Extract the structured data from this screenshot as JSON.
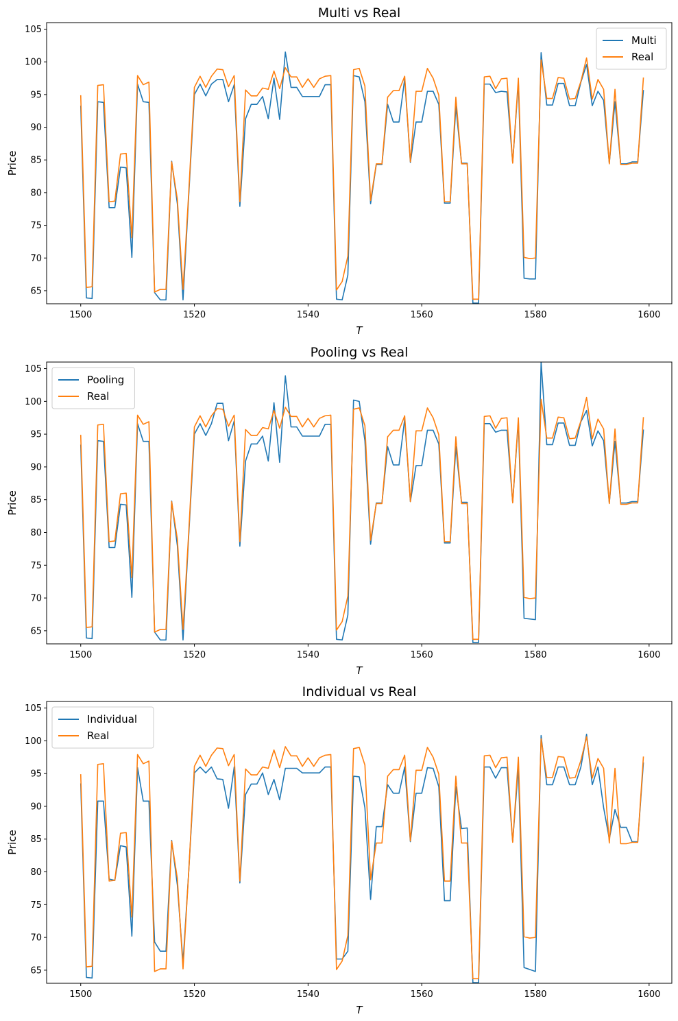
{
  "colors": {
    "model": "#1f77b4",
    "real": "#ff7f0e"
  },
  "chart_data": [
    {
      "type": "line",
      "title": "Multi vs Real",
      "xlabel": "T",
      "ylabel": "Price",
      "xlim": [
        1494,
        1604
      ],
      "ylim": [
        63,
        106
      ],
      "xticks": [
        1500,
        1520,
        1540,
        1560,
        1580,
        1600
      ],
      "yticks": [
        65,
        70,
        75,
        80,
        85,
        90,
        95,
        100,
        105
      ],
      "legend_position": "upper right",
      "x_start": 1500,
      "series": [
        {
          "name": "Multi",
          "color": "#1f77b4",
          "values": [
            93.3,
            63.9,
            63.8,
            93.9,
            93.8,
            77.7,
            77.7,
            83.9,
            83.8,
            70.1,
            96.6,
            93.9,
            93.8,
            64.7,
            63.6,
            63.6,
            84.8,
            78.3,
            63.6,
            79.5,
            95.0,
            96.6,
            94.8,
            96.6,
            97.3,
            97.3,
            93.9,
            96.5,
            77.9,
            91.3,
            93.5,
            93.5,
            94.7,
            91.3,
            97.5,
            91.2,
            101.5,
            96.1,
            96.1,
            94.7,
            94.7,
            94.7,
            94.7,
            96.5,
            96.5,
            63.7,
            63.6,
            67.4,
            97.9,
            97.7,
            93.9,
            78.3,
            84.3,
            84.3,
            93.5,
            90.8,
            90.8,
            97.4,
            84.6,
            90.8,
            90.8,
            95.5,
            95.5,
            93.5,
            78.4,
            78.4,
            93.2,
            84.5,
            84.5,
            63.1,
            63.1,
            96.6,
            96.6,
            95.3,
            95.5,
            95.4,
            84.6,
            96.9,
            66.9,
            66.8,
            66.8,
            101.4,
            93.4,
            93.4,
            96.7,
            96.7,
            93.3,
            93.3,
            96.9,
            99.6,
            93.3,
            95.5,
            94.1,
            84.5,
            93.9,
            84.4,
            84.4,
            84.7,
            84.7,
            95.7
          ]
        },
        {
          "name": "Real",
          "color": "#ff7f0e",
          "values": [
            94.9,
            65.5,
            65.6,
            96.4,
            96.5,
            78.6,
            78.7,
            85.9,
            86.0,
            73.1,
            97.9,
            96.5,
            96.9,
            64.8,
            65.2,
            65.2,
            84.7,
            79.0,
            65.2,
            80.0,
            96.1,
            97.8,
            96.1,
            97.8,
            98.9,
            98.8,
            96.2,
            97.9,
            78.6,
            95.7,
            94.8,
            94.8,
            96.0,
            95.8,
            98.6,
            95.9,
            99.1,
            97.7,
            97.7,
            96.1,
            97.4,
            96.1,
            97.4,
            97.8,
            97.9,
            65.1,
            66.4,
            70.3,
            98.8,
            99.0,
            96.3,
            78.8,
            84.4,
            84.4,
            94.6,
            95.6,
            95.6,
            97.8,
            84.7,
            95.5,
            95.5,
            99.0,
            97.5,
            94.9,
            78.6,
            78.6,
            94.6,
            84.4,
            84.4,
            63.7,
            63.7,
            97.7,
            97.8,
            95.9,
            97.4,
            97.5,
            84.5,
            97.5,
            70.1,
            69.9,
            70.0,
            100.3,
            94.4,
            94.4,
            97.6,
            97.5,
            94.3,
            94.4,
            97.0,
            100.6,
            94.3,
            97.3,
            95.8,
            84.4,
            95.8,
            84.3,
            84.3,
            84.5,
            84.5,
            97.6
          ]
        }
      ]
    },
    {
      "type": "line",
      "title": "Pooling vs Real",
      "xlabel": "T",
      "ylabel": "Price",
      "xlim": [
        1494,
        1604
      ],
      "ylim": [
        63,
        106
      ],
      "xticks": [
        1500,
        1520,
        1540,
        1560,
        1580,
        1600
      ],
      "yticks": [
        65,
        70,
        75,
        80,
        85,
        90,
        95,
        100,
        105
      ],
      "legend_position": "upper left",
      "x_start": 1500,
      "series": [
        {
          "name": "Pooling",
          "color": "#1f77b4",
          "values": [
            93.4,
            63.9,
            63.8,
            94.0,
            93.9,
            77.7,
            77.7,
            84.3,
            84.2,
            70.1,
            96.6,
            93.9,
            93.9,
            64.8,
            63.6,
            63.6,
            84.8,
            78.0,
            63.6,
            79.5,
            95.0,
            96.6,
            94.8,
            96.6,
            99.7,
            99.7,
            94.0,
            97.0,
            77.9,
            90.9,
            93.5,
            93.5,
            94.7,
            90.9,
            99.8,
            90.7,
            103.9,
            96.1,
            96.1,
            94.7,
            94.7,
            94.7,
            94.7,
            96.5,
            96.5,
            63.7,
            63.6,
            67.4,
            100.2,
            100.0,
            94.0,
            78.2,
            84.5,
            84.5,
            93.1,
            90.3,
            90.3,
            97.3,
            84.7,
            90.2,
            90.2,
            95.6,
            95.6,
            93.5,
            78.4,
            78.4,
            93.1,
            84.6,
            84.6,
            63.2,
            63.2,
            96.6,
            96.6,
            95.3,
            95.6,
            95.6,
            84.6,
            97.0,
            66.9,
            66.8,
            66.7,
            106.0,
            93.4,
            93.4,
            96.7,
            96.7,
            93.3,
            93.3,
            96.9,
            98.6,
            93.2,
            95.5,
            94.0,
            84.5,
            93.9,
            84.5,
            84.5,
            84.7,
            84.7,
            95.7
          ]
        },
        {
          "name": "Real",
          "color": "#ff7f0e",
          "values": [
            94.9,
            65.5,
            65.6,
            96.4,
            96.5,
            78.6,
            78.7,
            85.9,
            86.0,
            73.1,
            97.9,
            96.5,
            96.9,
            64.8,
            65.2,
            65.2,
            84.7,
            79.0,
            65.2,
            80.0,
            96.1,
            97.8,
            96.1,
            97.8,
            98.9,
            98.8,
            96.2,
            97.9,
            78.6,
            95.7,
            94.8,
            94.8,
            96.0,
            95.8,
            98.6,
            95.9,
            99.1,
            97.7,
            97.7,
            96.1,
            97.4,
            96.1,
            97.4,
            97.8,
            97.9,
            65.1,
            66.4,
            70.3,
            98.8,
            99.0,
            96.3,
            78.8,
            84.4,
            84.4,
            94.6,
            95.6,
            95.6,
            97.8,
            84.7,
            95.5,
            95.5,
            99.0,
            97.5,
            94.9,
            78.6,
            78.6,
            94.6,
            84.4,
            84.4,
            63.7,
            63.7,
            97.7,
            97.8,
            95.9,
            97.4,
            97.5,
            84.5,
            97.5,
            70.1,
            69.9,
            70.0,
            100.3,
            94.4,
            94.4,
            97.6,
            97.5,
            94.3,
            94.4,
            97.0,
            100.6,
            94.3,
            97.3,
            95.8,
            84.4,
            95.8,
            84.3,
            84.3,
            84.5,
            84.5,
            97.6
          ]
        }
      ]
    },
    {
      "type": "line",
      "title": "Individual vs Real",
      "xlabel": "T",
      "ylabel": "Price",
      "xlim": [
        1494,
        1604
      ],
      "ylim": [
        63,
        106
      ],
      "xticks": [
        1500,
        1520,
        1540,
        1560,
        1580,
        1600
      ],
      "yticks": [
        65,
        70,
        75,
        80,
        85,
        90,
        95,
        100,
        105
      ],
      "legend_position": "upper left",
      "x_start": 1500,
      "series": [
        {
          "name": "Individual",
          "color": "#1f77b4",
          "values": [
            93.5,
            63.9,
            63.8,
            90.8,
            90.8,
            78.9,
            78.7,
            84.0,
            83.8,
            70.2,
            95.9,
            90.8,
            90.8,
            69.3,
            67.9,
            67.9,
            84.8,
            78.0,
            66.2,
            80.0,
            95.1,
            96.0,
            95.1,
            96.0,
            94.2,
            94.1,
            89.7,
            96.0,
            78.3,
            91.8,
            93.4,
            93.4,
            95.1,
            91.8,
            94.1,
            91.0,
            95.8,
            95.8,
            95.8,
            95.1,
            95.1,
            95.1,
            95.1,
            96.0,
            96.0,
            66.7,
            66.7,
            67.9,
            94.6,
            94.5,
            89.8,
            75.8,
            86.9,
            86.9,
            93.3,
            92.0,
            92.0,
            96.0,
            84.6,
            92.0,
            92.0,
            95.9,
            95.8,
            93.0,
            75.6,
            75.6,
            93.0,
            86.6,
            86.7,
            63.1,
            63.1,
            96.0,
            96.0,
            94.3,
            95.9,
            95.9,
            84.6,
            96.0,
            65.4,
            65.1,
            64.8,
            100.8,
            93.3,
            93.3,
            96.0,
            96.0,
            93.3,
            93.3,
            96.0,
            101.0,
            93.3,
            96.0,
            89.8,
            85.0,
            89.5,
            86.8,
            86.8,
            84.6,
            84.6,
            96.7
          ]
        },
        {
          "name": "Real",
          "color": "#ff7f0e",
          "values": [
            94.9,
            65.5,
            65.6,
            96.4,
            96.5,
            78.6,
            78.7,
            85.9,
            86.0,
            73.1,
            97.9,
            96.5,
            96.9,
            64.8,
            65.2,
            65.2,
            84.7,
            79.0,
            65.2,
            80.0,
            96.1,
            97.8,
            96.1,
            97.8,
            98.9,
            98.8,
            96.2,
            97.9,
            78.6,
            95.7,
            94.8,
            94.8,
            96.0,
            95.8,
            98.6,
            95.9,
            99.1,
            97.7,
            97.7,
            96.1,
            97.4,
            96.1,
            97.4,
            97.8,
            97.9,
            65.1,
            66.4,
            70.3,
            98.8,
            99.0,
            96.3,
            78.8,
            84.4,
            84.4,
            94.6,
            95.6,
            95.6,
            97.8,
            84.7,
            95.5,
            95.5,
            99.0,
            97.5,
            94.9,
            78.6,
            78.6,
            94.6,
            84.4,
            84.4,
            63.7,
            63.7,
            97.7,
            97.8,
            95.9,
            97.4,
            97.5,
            84.5,
            97.5,
            70.1,
            69.9,
            70.0,
            100.3,
            94.4,
            94.4,
            97.6,
            97.5,
            94.3,
            94.4,
            97.0,
            100.6,
            94.3,
            97.3,
            95.8,
            84.4,
            95.8,
            84.3,
            84.3,
            84.5,
            84.5,
            97.6
          ]
        }
      ]
    }
  ]
}
